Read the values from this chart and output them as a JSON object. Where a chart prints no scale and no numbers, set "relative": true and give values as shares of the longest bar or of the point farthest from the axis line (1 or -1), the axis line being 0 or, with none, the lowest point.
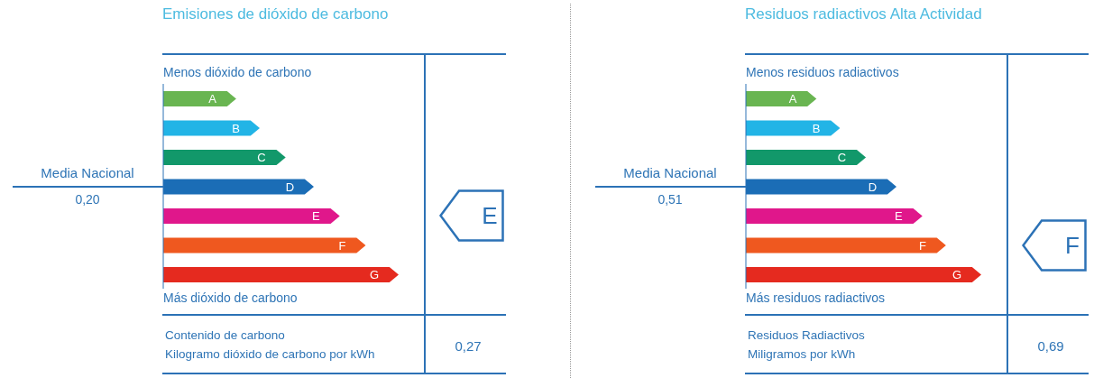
{
  "chart_data": [
    {
      "type": "bar",
      "orientation": "horizontal",
      "relative": true,
      "title": "Emisiones de dióxido de carbono",
      "categories": [
        "A",
        "B",
        "C",
        "D",
        "E",
        "F",
        "G"
      ],
      "values": [
        0.31,
        0.41,
        0.52,
        0.64,
        0.75,
        0.86,
        1
      ],
      "colors": [
        "#69b551",
        "#22b4e6",
        "#12986a",
        "#1b6db6",
        "#e0178b",
        "#ef581f",
        "#e52a1f"
      ],
      "annotations": [
        "Menos dióxido de carbono",
        "Más dióxido de carbono",
        "Media Nacional",
        "0,20",
        "E",
        "Contenido de carbono",
        "Kilogramo dióxido de carbono por kWh",
        "0,27"
      ]
    },
    {
      "type": "bar",
      "orientation": "horizontal",
      "relative": true,
      "title": "Residuos radiactivos Alta Actividad",
      "categories": [
        "A",
        "B",
        "C",
        "D",
        "E",
        "F",
        "G"
      ],
      "values": [
        0.3,
        0.4,
        0.51,
        0.64,
        0.75,
        0.85,
        1
      ],
      "colors": [
        "#69b551",
        "#22b4e6",
        "#12986a",
        "#1b6db6",
        "#e0178b",
        "#ef581f",
        "#e52a1f"
      ],
      "annotations": [
        "Menos residuos radiactivos",
        "Más residuos radiactivos",
        "Media Nacional",
        "0,51",
        "F",
        "Residuos Radiactivos",
        "Miligramos por kWh",
        "0,69"
      ]
    }
  ]
}
